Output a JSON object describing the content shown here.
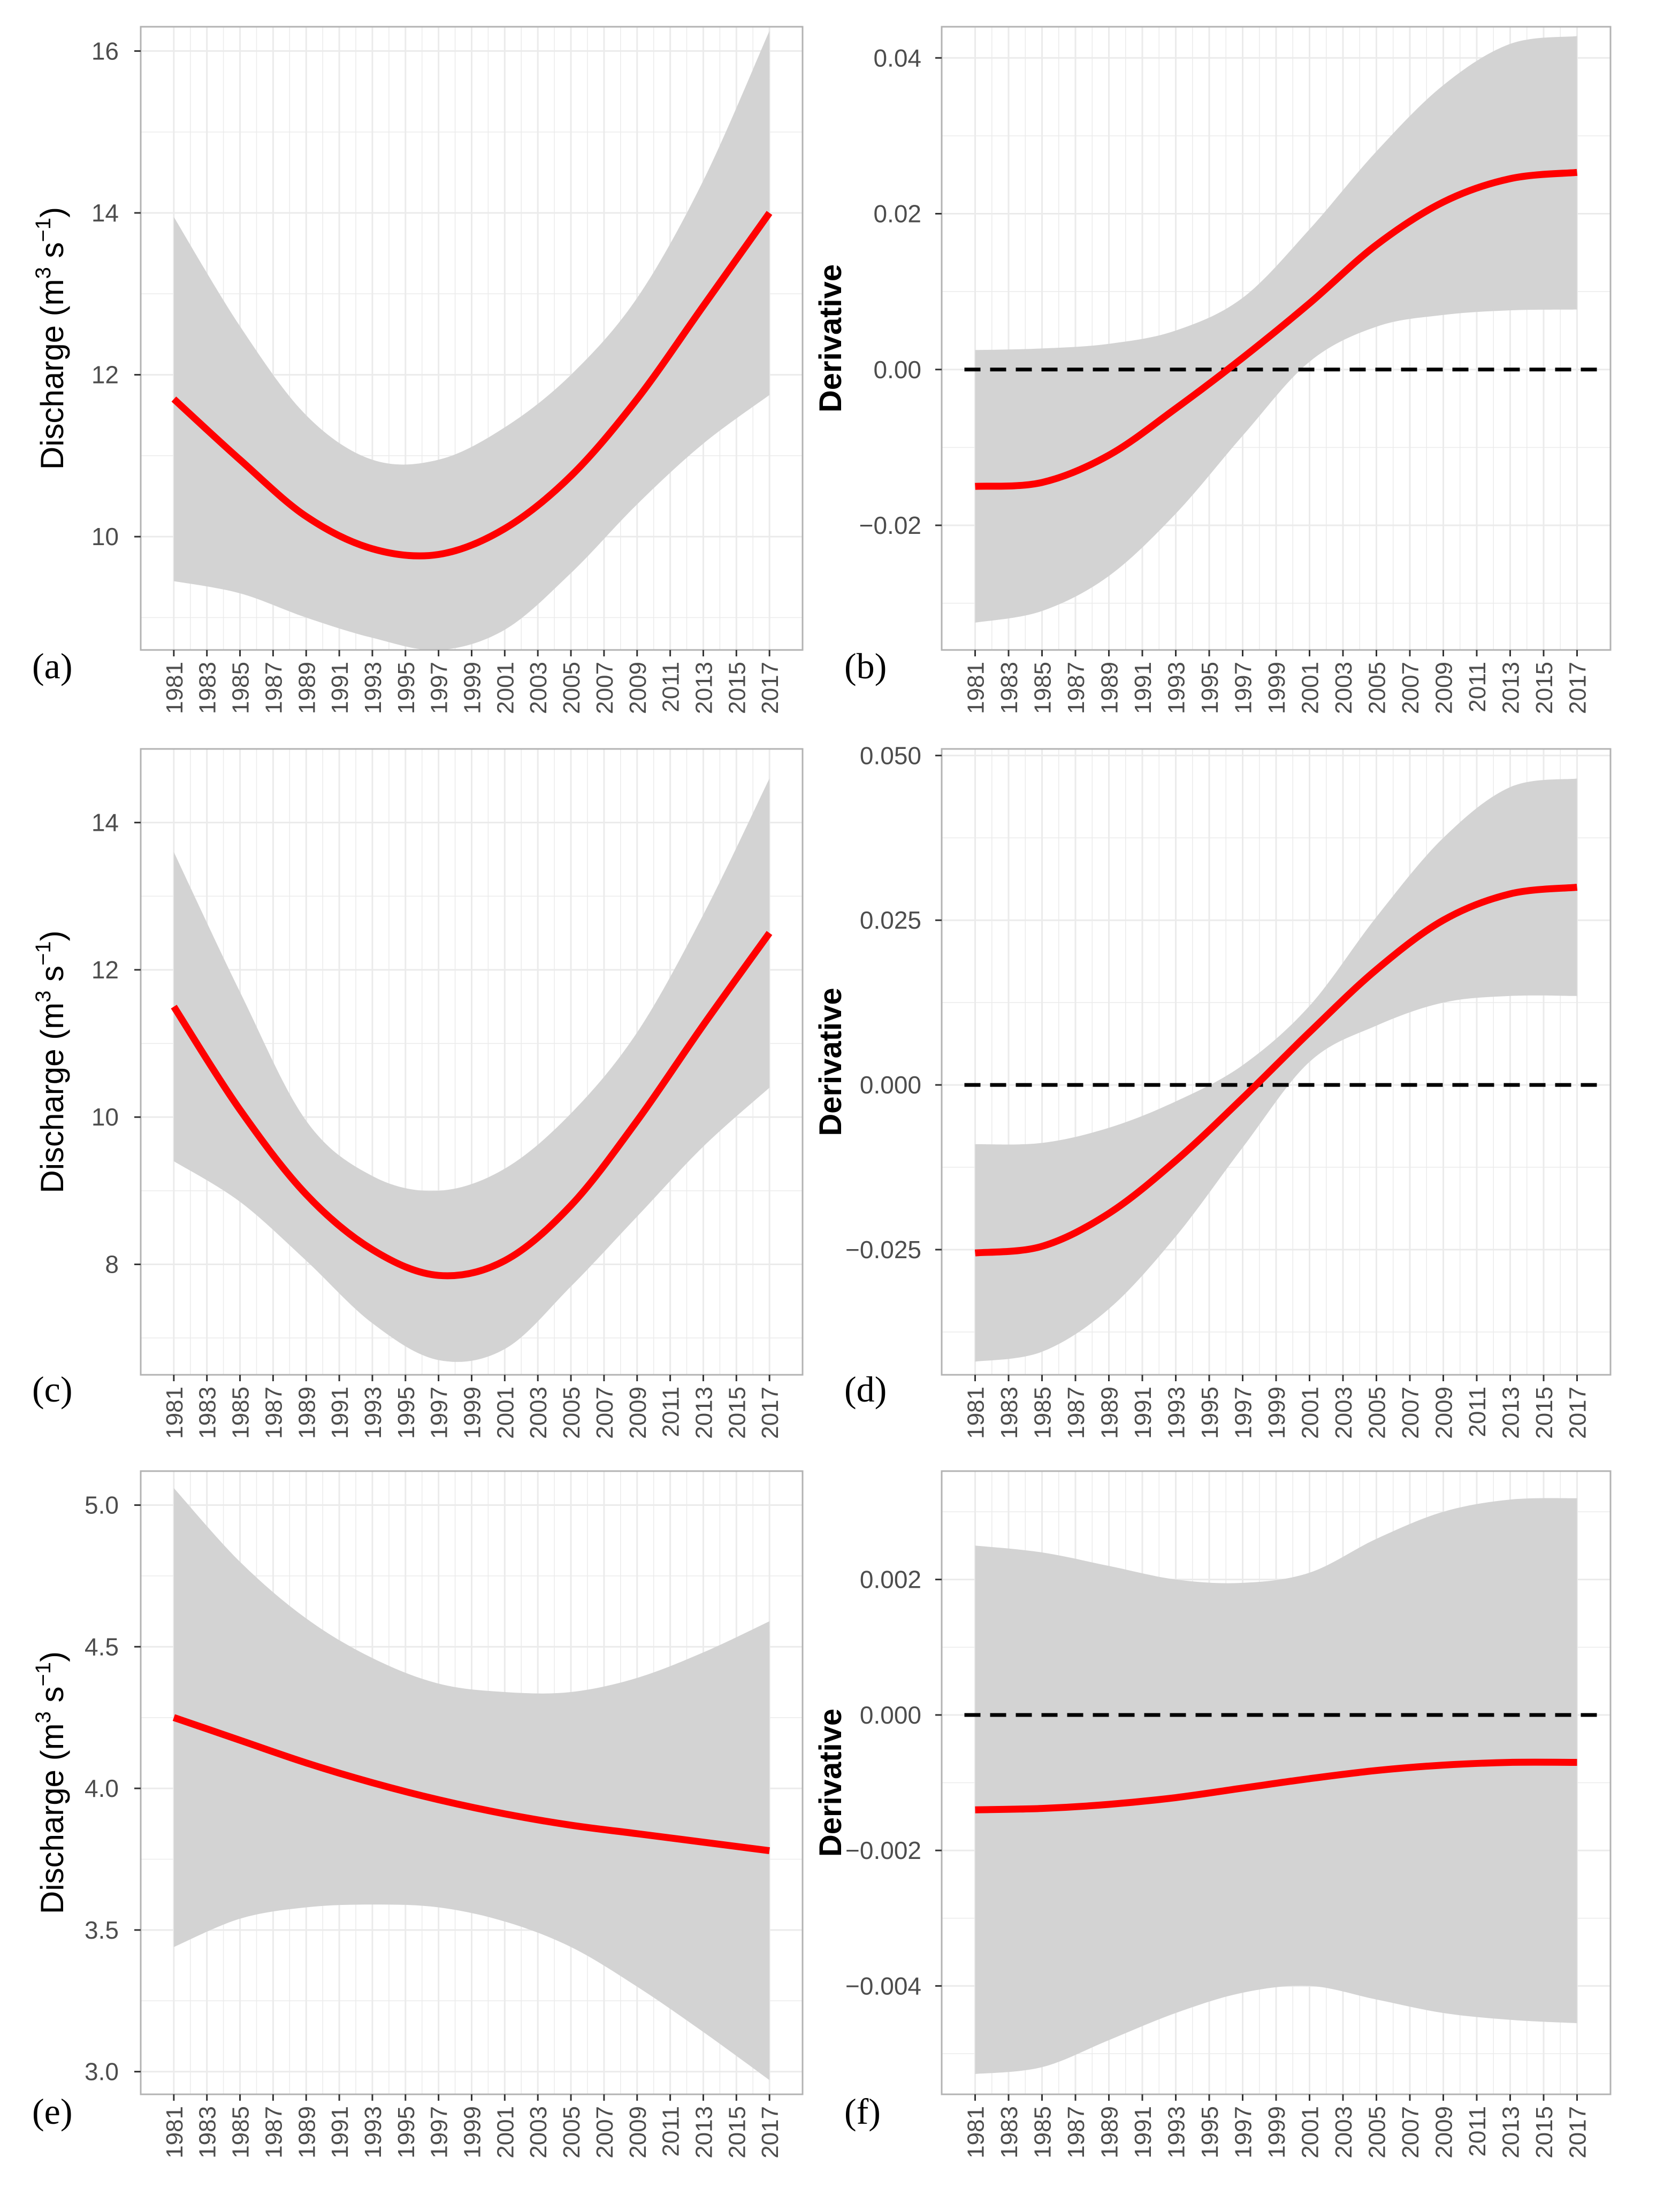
{
  "colors": {
    "line": "#ff0000",
    "ribbon": "#d3d3d3",
    "grid": "#ebebeb",
    "border": "#b3b3b3",
    "zero_line": "#000000",
    "tick_text": "#4d4d4d"
  },
  "x_ticks": [
    "1981",
    "1983",
    "1985",
    "1987",
    "1989",
    "1991",
    "1993",
    "1995",
    "1997",
    "1999",
    "2001",
    "2003",
    "2005",
    "2007",
    "2009",
    "2011",
    "2013",
    "2015",
    "2017"
  ],
  "chart_data": [
    {
      "id": "a",
      "panel_label": "(a)",
      "type": "line",
      "ylabel": "Discharge (m3 s−1)",
      "ylabel_parts": [
        "Discharge (m",
        "3",
        " s",
        "−1",
        ")"
      ],
      "xlim": [
        1979,
        2019
      ],
      "ylim": [
        8.6,
        16.3
      ],
      "xlabel": "",
      "yticks": [
        10,
        12,
        14,
        16
      ],
      "ytick_labels": [
        "10",
        "12",
        "14",
        "16"
      ],
      "zero_line": false,
      "x": [
        1981,
        1985,
        1989,
        1993,
        1997,
        2001,
        2005,
        2009,
        2013,
        2017
      ],
      "fit": [
        11.7,
        10.95,
        10.25,
        9.85,
        9.78,
        10.1,
        10.75,
        11.7,
        12.85,
        14.0
      ],
      "lower": [
        9.45,
        9.3,
        9.0,
        8.75,
        8.6,
        8.85,
        9.55,
        10.4,
        11.15,
        11.75
      ],
      "upper": [
        13.95,
        12.6,
        11.5,
        10.95,
        10.95,
        11.35,
        12.0,
        12.95,
        14.4,
        16.25
      ]
    },
    {
      "id": "b",
      "panel_label": "(b)",
      "type": "line",
      "ylabel": "Derivative",
      "ylabel_parts": [
        "Derivative"
      ],
      "xlim": [
        1979,
        2019
      ],
      "ylim": [
        -0.036,
        0.044
      ],
      "xlabel": "",
      "yticks": [
        -0.02,
        0.0,
        0.02,
        0.04
      ],
      "ytick_labels": [
        "−0.02",
        "0.00",
        "0.02",
        "0.04"
      ],
      "zero_line": true,
      "x": [
        1981,
        1985,
        1989,
        1993,
        1997,
        2001,
        2005,
        2009,
        2013,
        2017
      ],
      "fit": [
        -0.015,
        -0.0145,
        -0.011,
        -0.005,
        0.0015,
        0.0085,
        0.016,
        0.0215,
        0.0245,
        0.0253
      ],
      "lower": [
        -0.0325,
        -0.031,
        -0.0265,
        -0.0185,
        -0.0085,
        0.001,
        0.0055,
        0.007,
        0.0076,
        0.0077
      ],
      "upper": [
        0.0025,
        0.0027,
        0.0033,
        0.005,
        0.0092,
        0.018,
        0.028,
        0.0365,
        0.0418,
        0.0428
      ]
    },
    {
      "id": "c",
      "panel_label": "(c)",
      "type": "line",
      "ylabel": "Discharge (m3 s−1)",
      "ylabel_parts": [
        "Discharge (m",
        "3",
        " s",
        "−1",
        ")"
      ],
      "xlim": [
        1979,
        2019
      ],
      "ylim": [
        6.5,
        15.0
      ],
      "xlabel": "",
      "yticks": [
        8,
        10,
        12,
        14
      ],
      "ytick_labels": [
        "8",
        "10",
        "12",
        "14"
      ],
      "zero_line": false,
      "x": [
        1981,
        1985,
        1989,
        1993,
        1997,
        2001,
        2005,
        2009,
        2013,
        2017
      ],
      "fit": [
        11.5,
        10.1,
        8.95,
        8.2,
        7.85,
        8.05,
        8.8,
        9.95,
        11.25,
        12.5
      ],
      "lower": [
        9.4,
        8.85,
        8.05,
        7.2,
        6.7,
        6.85,
        7.7,
        8.65,
        9.6,
        10.4
      ],
      "upper": [
        13.6,
        11.7,
        9.95,
        9.2,
        9.0,
        9.3,
        10.05,
        11.15,
        12.75,
        14.6
      ]
    },
    {
      "id": "d",
      "panel_label": "(d)",
      "type": "line",
      "ylabel": "Derivative",
      "ylabel_parts": [
        "Derivative"
      ],
      "xlim": [
        1979,
        2019
      ],
      "ylim": [
        -0.044,
        0.051
      ],
      "xlabel": "",
      "yticks": [
        -0.025,
        0.0,
        0.025,
        0.05
      ],
      "ytick_labels": [
        "−0.025",
        "0.000",
        "0.025",
        "0.050"
      ],
      "zero_line": true,
      "x": [
        1981,
        1985,
        1989,
        1993,
        1997,
        2001,
        2005,
        2009,
        2013,
        2017
      ],
      "fit": [
        -0.0255,
        -0.0245,
        -0.0195,
        -0.0115,
        -0.002,
        0.008,
        0.0175,
        0.025,
        0.029,
        0.03
      ],
      "lower": [
        -0.042,
        -0.0405,
        -0.034,
        -0.023,
        -0.0095,
        0.0035,
        0.009,
        0.0125,
        0.0135,
        0.0135
      ],
      "upper": [
        -0.009,
        -0.0088,
        -0.0065,
        -0.0025,
        0.003,
        0.012,
        0.0255,
        0.0375,
        0.0452,
        0.0465
      ]
    },
    {
      "id": "e",
      "panel_label": "(e)",
      "type": "line",
      "ylabel": "Discharge (m3 s−1)",
      "ylabel_parts": [
        "Discharge (m",
        "3",
        " s",
        "−1",
        ")"
      ],
      "xlim": [
        1979,
        2019
      ],
      "ylim": [
        2.92,
        5.12
      ],
      "xlabel": "",
      "yticks": [
        3.0,
        3.5,
        4.0,
        4.5,
        5.0
      ],
      "ytick_labels": [
        "3.0",
        "3.5",
        "4.0",
        "4.5",
        "5.0"
      ],
      "zero_line": false,
      "x": [
        1981,
        1985,
        1989,
        1993,
        1997,
        2001,
        2005,
        2009,
        2013,
        2017
      ],
      "fit": [
        4.25,
        4.17,
        4.09,
        4.02,
        3.96,
        3.91,
        3.87,
        3.84,
        3.81,
        3.78
      ],
      "lower": [
        3.44,
        3.54,
        3.58,
        3.59,
        3.58,
        3.53,
        3.44,
        3.3,
        3.14,
        2.97
      ],
      "upper": [
        5.06,
        4.8,
        4.6,
        4.46,
        4.37,
        4.34,
        4.34,
        4.39,
        4.48,
        4.59
      ]
    },
    {
      "id": "f",
      "panel_label": "(f)",
      "type": "line",
      "ylabel": "Derivative",
      "ylabel_parts": [
        "Derivative"
      ],
      "xlim": [
        1979,
        2019
      ],
      "ylim": [
        -0.0056,
        0.0036
      ],
      "xlabel": "",
      "yticks": [
        -0.004,
        -0.002,
        0.0,
        0.002
      ],
      "ytick_labels": [
        "−0.004",
        "−0.002",
        "0.000",
        "0.002"
      ],
      "zero_line": true,
      "x": [
        1981,
        1985,
        1989,
        1993,
        1997,
        2001,
        2005,
        2009,
        2013,
        2017
      ],
      "fit": [
        -0.0014,
        -0.00138,
        -0.00132,
        -0.00122,
        -0.00108,
        -0.00094,
        -0.00082,
        -0.00074,
        -0.0007,
        -0.0007
      ],
      "lower": [
        -0.0053,
        -0.0052,
        -0.0048,
        -0.0044,
        -0.0041,
        -0.004,
        -0.0042,
        -0.0044,
        -0.0045,
        -0.00455
      ],
      "upper": [
        0.0025,
        0.0024,
        0.0022,
        0.002,
        0.00195,
        0.0021,
        0.0026,
        0.003,
        0.00318,
        0.0032
      ]
    }
  ]
}
